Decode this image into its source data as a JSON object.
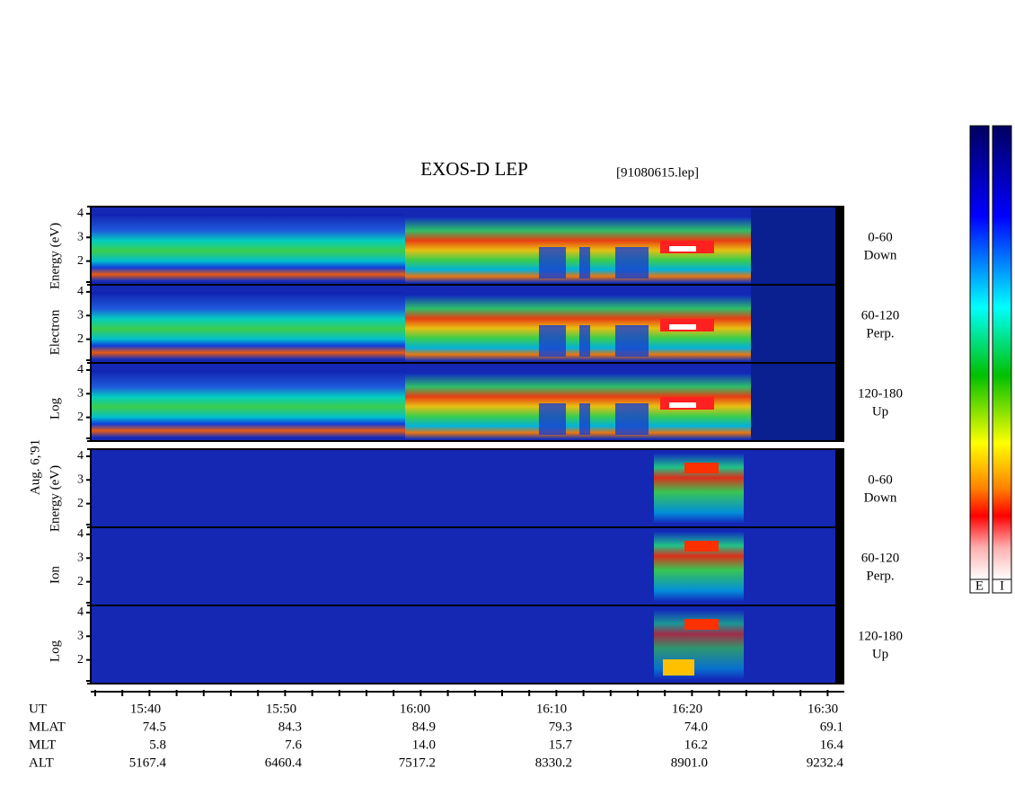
{
  "header": {
    "title": "EXOS-D LEP",
    "file": "[91080615.lep]",
    "date": "Aug. 6,'91"
  },
  "electron": {
    "ylabel": [
      "Log",
      "Electron",
      "Energy (eV)"
    ],
    "ylim": [
      1,
      4.3
    ],
    "yticks": [
      2,
      3,
      4
    ],
    "panels": [
      [
        "0-60",
        "Down"
      ],
      [
        "60-120",
        "Perp."
      ],
      [
        "120-180",
        "Up"
      ]
    ]
  },
  "ion": {
    "ylabel": [
      "Log",
      "Ion",
      "Energy (eV)"
    ],
    "ylim": [
      1,
      4.3
    ],
    "yticks": [
      2,
      3,
      4
    ],
    "panels": [
      [
        "0-60",
        "Down"
      ],
      [
        "60-120",
        "Perp."
      ],
      [
        "120-180",
        "Up"
      ]
    ]
  },
  "table": {
    "rows": [
      {
        "name": "UT",
        "values": [
          "15:40",
          "15:50",
          "16:00",
          "16:10",
          "16:20",
          "16:30"
        ]
      },
      {
        "name": "MLAT",
        "values": [
          "74.5",
          "84.3",
          "84.9",
          "79.3",
          "74.0",
          "69.1"
        ]
      },
      {
        "name": "MLT",
        "values": [
          "5.8",
          "7.6",
          "14.0",
          "15.7",
          "16.2",
          "16.4"
        ]
      },
      {
        "name": "ALT",
        "values": [
          "5167.4",
          "6460.4",
          "7517.2",
          "8330.2",
          "8901.0",
          "9232.4"
        ]
      }
    ]
  },
  "colorbars": [
    "E",
    "I"
  ]
}
